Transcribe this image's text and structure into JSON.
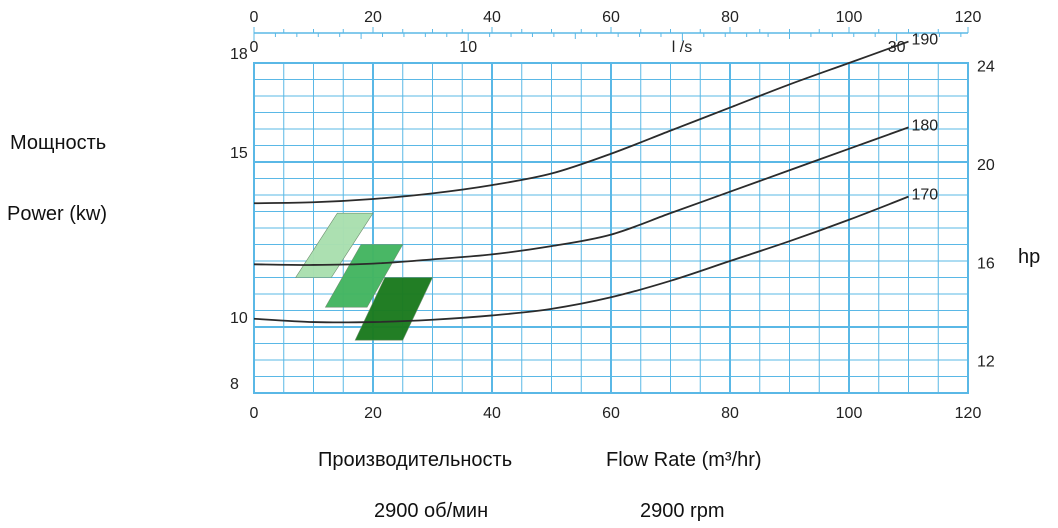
{
  "chart_data": {
    "type": "line",
    "xlabel_ru": "Производительность",
    "xlabel_en": "Flow Rate (m³/hr)",
    "ylabel_ru": "Мощность",
    "ylabel_en": "Power (kw)",
    "y2label": "hp",
    "speed_ru": "2900 об/мин",
    "speed_en": "2900 rpm",
    "top_unit_label": "l /s",
    "xlim": [
      0,
      120
    ],
    "ylim": [
      8,
      18
    ],
    "x_ticks": [
      "0",
      "20",
      "40",
      "60",
      "80",
      "100",
      "120"
    ],
    "top_x_ticks": [
      "0",
      "20",
      "40",
      "60",
      "80",
      "100",
      "120"
    ],
    "ls_ticks": [
      {
        "label": "0",
        "value": 0
      },
      {
        "label": "10",
        "value": 10
      },
      {
        "label": "30",
        "value": 30
      }
    ],
    "y_ticks": [
      {
        "label": "18",
        "value": 18
      },
      {
        "label": "15",
        "value": 15
      },
      {
        "label": "10",
        "value": 10
      },
      {
        "label": "8",
        "value": 8
      }
    ],
    "hp_ticks": [
      {
        "label": "24",
        "value": 24
      },
      {
        "label": "20",
        "value": 20
      },
      {
        "label": "16",
        "value": 16
      },
      {
        "label": "12",
        "value": 12
      }
    ],
    "grid": true,
    "series": [
      {
        "name": "190",
        "color": "#2b2b2b",
        "points": [
          [
            0,
            13.75
          ],
          [
            10,
            13.78
          ],
          [
            20,
            13.88
          ],
          [
            30,
            14.05
          ],
          [
            40,
            14.3
          ],
          [
            50,
            14.65
          ],
          [
            60,
            15.25
          ],
          [
            70,
            15.95
          ],
          [
            80,
            16.65
          ],
          [
            90,
            17.35
          ],
          [
            100,
            18.0
          ],
          [
            110,
            18.65
          ]
        ]
      },
      {
        "name": "180",
        "color": "#2b2b2b",
        "points": [
          [
            0,
            11.9
          ],
          [
            10,
            11.88
          ],
          [
            20,
            11.92
          ],
          [
            30,
            12.05
          ],
          [
            40,
            12.2
          ],
          [
            50,
            12.45
          ],
          [
            60,
            12.8
          ],
          [
            70,
            13.45
          ],
          [
            80,
            14.1
          ],
          [
            90,
            14.75
          ],
          [
            100,
            15.4
          ],
          [
            110,
            16.05
          ]
        ]
      },
      {
        "name": "170",
        "color": "#2b2b2b",
        "points": [
          [
            0,
            10.25
          ],
          [
            10,
            10.15
          ],
          [
            20,
            10.15
          ],
          [
            30,
            10.22
          ],
          [
            40,
            10.35
          ],
          [
            50,
            10.55
          ],
          [
            60,
            10.9
          ],
          [
            70,
            11.4
          ],
          [
            80,
            12.0
          ],
          [
            90,
            12.6
          ],
          [
            100,
            13.25
          ],
          [
            110,
            13.95
          ]
        ]
      }
    ],
    "shaded_regions": [
      {
        "color": "#a9dfae",
        "corners": [
          [
            7,
            11.5
          ],
          [
            13,
            11.5
          ],
          [
            20,
            13.45
          ],
          [
            14,
            13.45
          ]
        ]
      },
      {
        "color": "#43b560",
        "corners": [
          [
            12,
            10.6
          ],
          [
            19,
            10.6
          ],
          [
            25,
            12.5
          ],
          [
            18,
            12.5
          ]
        ]
      },
      {
        "color": "#1b7a1e",
        "corners": [
          [
            17,
            9.6
          ],
          [
            25,
            9.6
          ],
          [
            30,
            11.5
          ],
          [
            22,
            11.5
          ]
        ]
      }
    ]
  }
}
